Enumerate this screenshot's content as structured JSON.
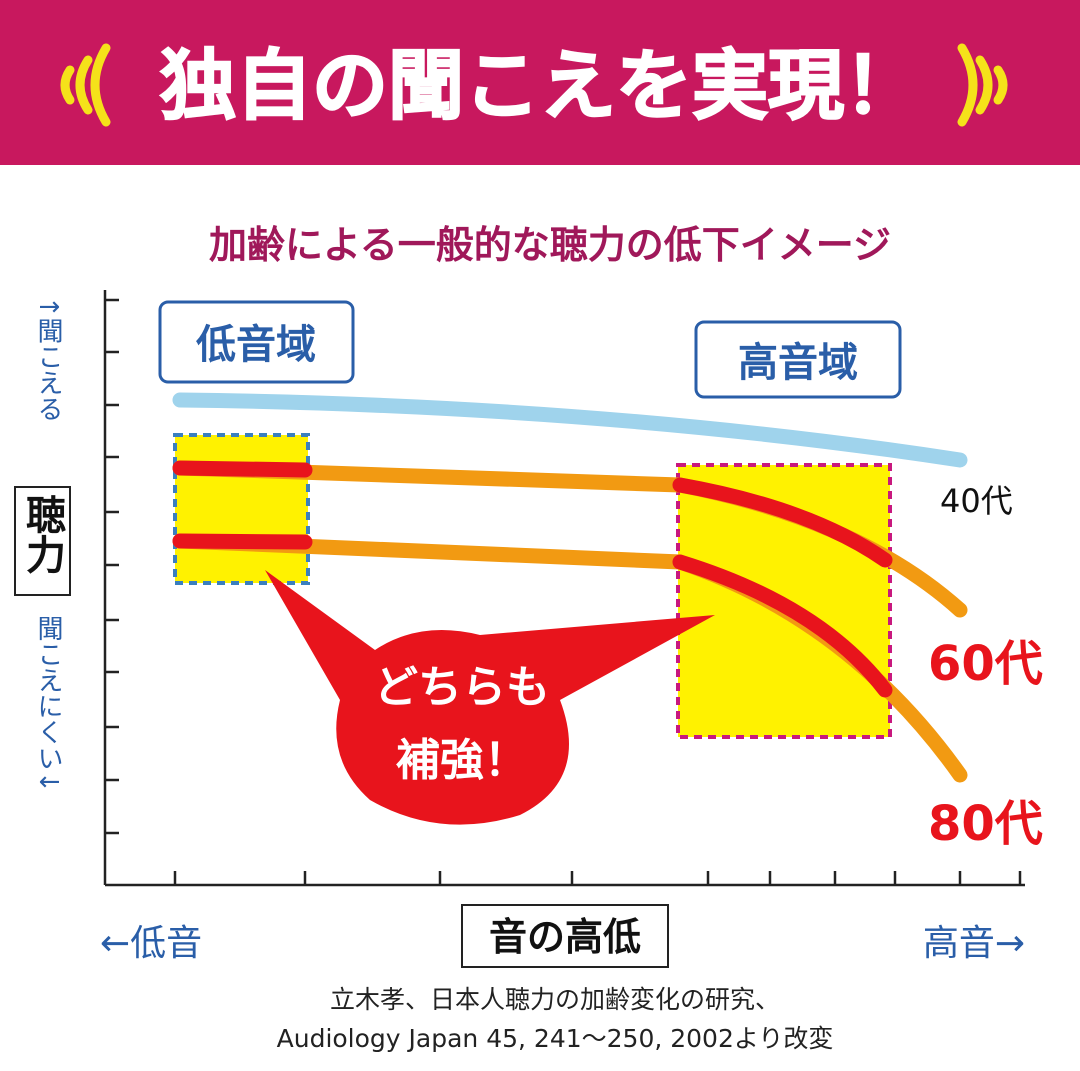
{
  "header": {
    "title": "独自の聞こえを実現！"
  },
  "diagram": {
    "subtitle": "加齢による一般的な聴力の低下イメージ",
    "y_axis": {
      "label": "聴力",
      "top": "↑聞こえる",
      "bottom": "聞こえにくい↓"
    },
    "x_axis": {
      "label": "音の高低",
      "left": "←低音",
      "right": "高音→"
    },
    "regions": [
      "低音域",
      "高音域"
    ],
    "curves": [
      "40代",
      "60代",
      "80代"
    ],
    "callout": [
      "どちらも",
      "補強！"
    ]
  },
  "source": [
    "立木孝、日本人聴力の加齢変化の研究、",
    "Audiology Japan 45, 241〜250, 2002より改変"
  ]
}
